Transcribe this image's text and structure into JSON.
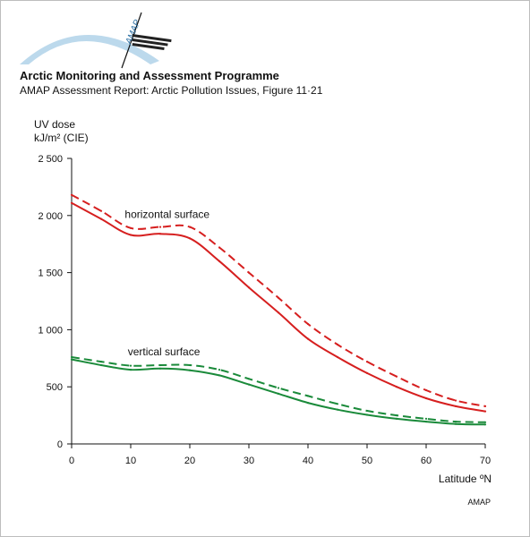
{
  "header": {
    "title": "Arctic Monitoring and Assessment Programme",
    "subtitle": "AMAP Assessment Report: Arctic Pollution Issues, Figure 11·21",
    "logo_text": "AMAP"
  },
  "footer": {
    "credit": "AMAP"
  },
  "chart_data": {
    "type": "line",
    "ylabel_line1": "UV dose",
    "ylabel_line2": "kJ/m² (CIE)",
    "xlabel": "Latitude ºN",
    "xlim": [
      0,
      70
    ],
    "ylim": [
      0,
      2500
    ],
    "xticks": [
      0,
      10,
      20,
      30,
      40,
      50,
      60,
      70
    ],
    "xtick_labels": [
      "0",
      "10",
      "20",
      "30",
      "40",
      "50",
      "60",
      "70"
    ],
    "yticks": [
      0,
      500,
      1000,
      1500,
      2000,
      2500
    ],
    "ytick_labels": [
      "0",
      "500",
      "1 000",
      "1 500",
      "2 000",
      "2 500"
    ],
    "grid": false,
    "annotations": [
      {
        "text": "horizontal surface",
        "x": 9,
        "y": 1980
      },
      {
        "text": "vertical surface",
        "x": 9.5,
        "y": 775
      }
    ],
    "x": [
      0,
      5,
      10,
      15,
      20,
      25,
      30,
      35,
      40,
      45,
      50,
      55,
      60,
      65,
      70
    ],
    "series": [
      {
        "values": [
          2110,
          1970,
          1830,
          1840,
          1800,
          1600,
          1370,
          1150,
          920,
          760,
          620,
          500,
          400,
          330,
          285
        ],
        "color": "#d61f1f",
        "dash": "solid"
      },
      {
        "values": [
          2180,
          2040,
          1890,
          1900,
          1900,
          1720,
          1500,
          1280,
          1050,
          870,
          720,
          590,
          470,
          380,
          330
        ],
        "color": "#d61f1f",
        "dash": "dashed"
      },
      {
        "values": [
          740,
          690,
          650,
          660,
          645,
          600,
          520,
          440,
          360,
          300,
          255,
          220,
          195,
          175,
          170
        ],
        "color": "#1a8a3a",
        "dash": "solid"
      },
      {
        "values": [
          760,
          720,
          685,
          690,
          690,
          650,
          570,
          490,
          420,
          350,
          290,
          250,
          220,
          195,
          190
        ],
        "color": "#1a8a3a",
        "dash": "dashed"
      }
    ]
  }
}
